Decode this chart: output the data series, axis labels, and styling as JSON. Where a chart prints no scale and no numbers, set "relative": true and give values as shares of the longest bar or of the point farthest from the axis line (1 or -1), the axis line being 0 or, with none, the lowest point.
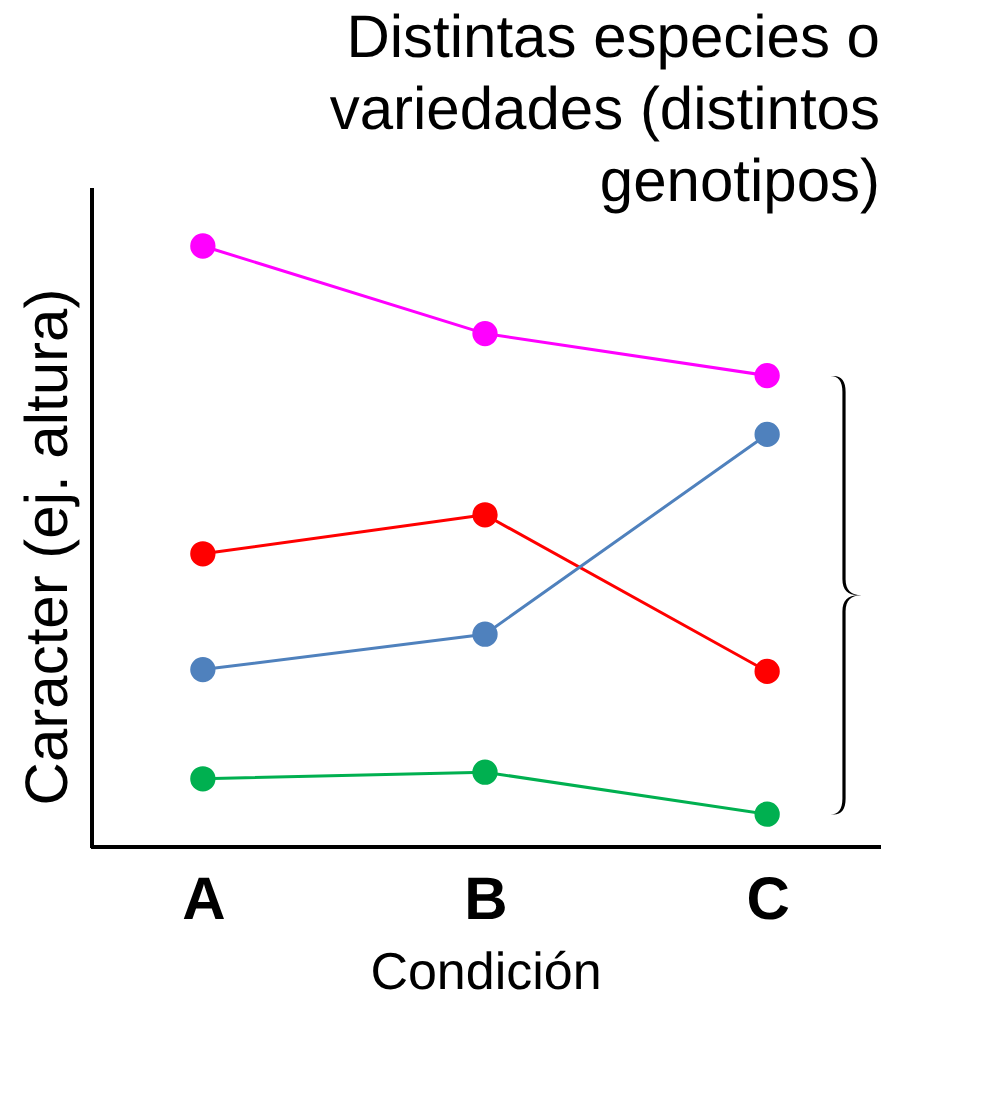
{
  "chart_data": {
    "type": "line",
    "title": "Distintas especies o variedades (distintos genotipos)",
    "xlabel": "Condición",
    "ylabel": "Caracter (ej. altura)",
    "relative": true,
    "categories": [
      "A",
      "B",
      "C"
    ],
    "series": [
      {
        "color": "#ff00ff",
        "values": [
          1,
          0.854,
          0.784
        ]
      },
      {
        "color": "#ff0000",
        "values": [
          0.487,
          0.552,
          0.291
        ]
      },
      {
        "color": "#4f81bd",
        "values": [
          0.294,
          0.353,
          0.686
        ]
      },
      {
        "color": "#00b050",
        "values": [
          0.112,
          0.123,
          0.053
        ]
      }
    ],
    "marker": "circle",
    "line_style": "solid",
    "grid": false,
    "legend": false
  }
}
